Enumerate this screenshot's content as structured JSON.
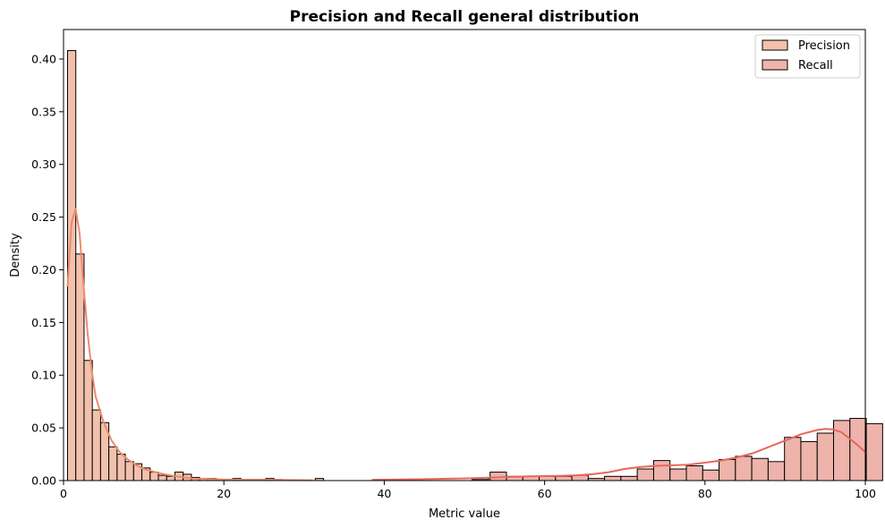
{
  "chart_data": {
    "type": "bar",
    "title": "Precision and Recall general distribution",
    "xlabel": "Metric value",
    "ylabel": "Density",
    "xlim": [
      0,
      100
    ],
    "ylim": [
      0,
      0.428
    ],
    "xticks": [
      0,
      20,
      40,
      60,
      80,
      100
    ],
    "xtick_labels": [
      "0",
      "20",
      "40",
      "60",
      "80",
      "100"
    ],
    "yticks": [
      0,
      0.05,
      0.1,
      0.15,
      0.2,
      0.25,
      0.3,
      0.35,
      0.4
    ],
    "ytick_labels": [
      "0.00",
      "0.05",
      "0.10",
      "0.15",
      "0.20",
      "0.25",
      "0.30",
      "0.35",
      "0.40"
    ],
    "grid": false,
    "legend_position": "top-right",
    "series": [
      {
        "name": "Precision",
        "color": "#f2c1ad",
        "line_color": "#ee8a6a",
        "bin_width": 1.03,
        "bin_start": 0.5,
        "values": [
          0.408,
          0.215,
          0.114,
          0.067,
          0.055,
          0.032,
          0.025,
          0.018,
          0.016,
          0.012,
          0.008,
          0.005,
          0.004,
          0.008,
          0.006,
          0.003,
          0.002,
          0.002,
          0.001,
          0.001,
          0.002,
          0.0,
          0.001,
          0.001,
          0.002,
          0.001,
          0.0,
          0.0,
          0.0,
          0.0,
          0.002
        ],
        "kde_x": [
          0.5,
          1.0,
          1.5,
          2.0,
          2.5,
          3.0,
          3.5,
          4.0,
          5.0,
          6.0,
          7.0,
          8.0,
          9.0,
          10.0,
          12.0,
          14.0,
          16.0,
          18.0,
          20.0,
          24.0,
          28.0,
          31.0
        ],
        "kde_y": [
          0.185,
          0.245,
          0.258,
          0.235,
          0.185,
          0.14,
          0.105,
          0.08,
          0.055,
          0.038,
          0.027,
          0.02,
          0.015,
          0.011,
          0.007,
          0.004,
          0.002,
          0.0015,
          0.001,
          0.0008,
          0.0005,
          0.0003
        ]
      },
      {
        "name": "Recall",
        "color": "#eeb3ab",
        "line_color": "#e8675b",
        "bin_width": 2.04,
        "bin_start": 38.7,
        "values": [
          0.001,
          0.0,
          0.0,
          0.0,
          0.0,
          0.0,
          0.001,
          0.002,
          0.0,
          0.0,
          0.0,
          0.0,
          0.0,
          0.0,
          0.0,
          0.0,
          0.0
        ],
        "bins2_start": 53.2,
        "values2": [
          0.008,
          0.004,
          0.004,
          0.004,
          0.004,
          0.005,
          0.002,
          0.004,
          0.004,
          0.011,
          0.019,
          0.011,
          0.014,
          0.01,
          0.02,
          0.023,
          0.021,
          0.018,
          0.041,
          0.037,
          0.045,
          0.057,
          0.059,
          0.054
        ],
        "kde_x": [
          38.5,
          42,
          46,
          50,
          54,
          58,
          62,
          64,
          66,
          68,
          70,
          72,
          74,
          76,
          78,
          80,
          82,
          84,
          86,
          88,
          90,
          92,
          94,
          95,
          96,
          97,
          98,
          99,
          100
        ],
        "kde_y": [
          0.0005,
          0.001,
          0.0015,
          0.002,
          0.003,
          0.004,
          0.0045,
          0.005,
          0.006,
          0.008,
          0.011,
          0.013,
          0.014,
          0.0145,
          0.015,
          0.017,
          0.019,
          0.022,
          0.026,
          0.032,
          0.038,
          0.044,
          0.048,
          0.049,
          0.0485,
          0.046,
          0.04,
          0.034,
          0.027
        ]
      }
    ]
  }
}
